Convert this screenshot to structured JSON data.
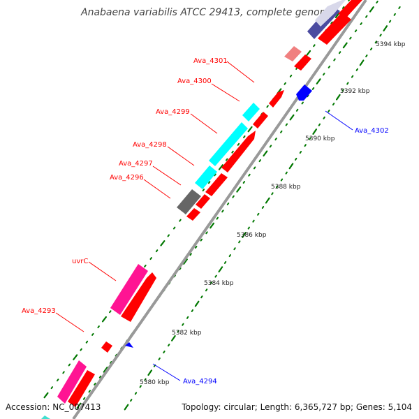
{
  "title": "Anabaena variabilis ATCC 29413, complete genome",
  "footer": {
    "accession": "Accession: NC_007413",
    "summary": "Topology: circular; Length: 6,365,727 bp; Genes: 5,104"
  },
  "colors": {
    "forward_gene": "#ff0000",
    "reverse_gene": "#0000ff",
    "cyan_feature": "#00ffff",
    "magenta_feature": "#ff1493",
    "gray_feature": "#666666",
    "purple_feature": "#4b4ba0",
    "pink_feature": "#f08080",
    "backbone": "#999999",
    "tick": "#007700"
  },
  "genome_labels": [
    {
      "id": "Ava_4301",
      "text": "Ava_4301",
      "strand": "forward"
    },
    {
      "id": "Ava_4300",
      "text": "Ava_4300",
      "strand": "forward"
    },
    {
      "id": "Ava_4299",
      "text": "Ava_4299",
      "strand": "forward"
    },
    {
      "id": "Ava_4298",
      "text": "Ava_4298",
      "strand": "forward"
    },
    {
      "id": "Ava_4297",
      "text": "Ava_4297",
      "strand": "forward"
    },
    {
      "id": "Ava_4296",
      "text": "Ava_4296",
      "strand": "forward"
    },
    {
      "id": "uvrC",
      "text": "uvrC",
      "strand": "forward"
    },
    {
      "id": "Ava_4293",
      "text": "Ava_4293",
      "strand": "forward"
    },
    {
      "id": "Ava_4302",
      "text": "Ava_4302",
      "strand": "reverse"
    },
    {
      "id": "Ava_4294",
      "text": "Ava_4294",
      "strand": "reverse"
    }
  ],
  "kbp_labels": [
    "5394 kbp",
    "5392 kbp",
    "5390 kbp",
    "5388 kbp",
    "5386 kbp",
    "5384 kbp",
    "5382 kbp",
    "5380 kbp"
  ]
}
